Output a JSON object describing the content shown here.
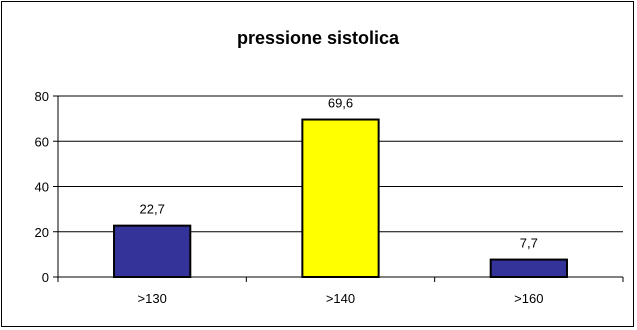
{
  "chart_data": {
    "type": "bar",
    "title": "pressione sistolica",
    "categories": [
      ">130",
      ">140",
      ">160"
    ],
    "values": [
      22.7,
      69.6,
      7.7
    ],
    "value_labels": [
      "22,7",
      "69,6",
      "7,7"
    ],
    "bar_colors": [
      "#333399",
      "#ffff00",
      "#333399"
    ],
    "ylim": [
      0,
      80
    ],
    "yticks": [
      0,
      20,
      40,
      60,
      80
    ],
    "xlabel": "",
    "ylabel": "",
    "grid": true,
    "legend": "none"
  }
}
